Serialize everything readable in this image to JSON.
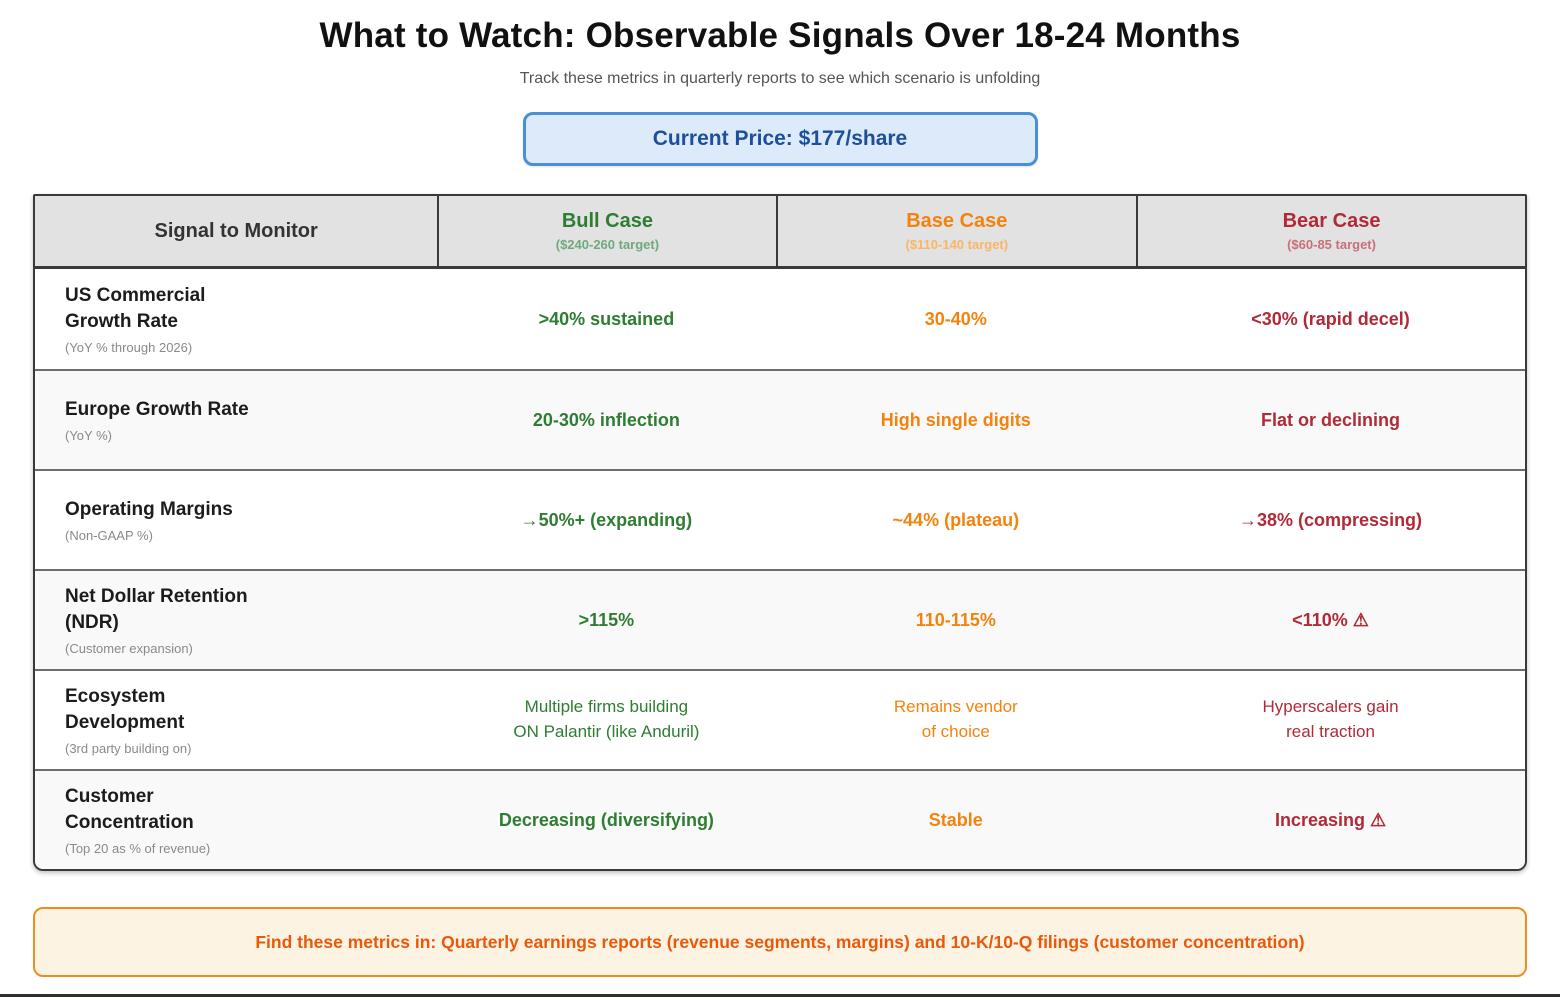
{
  "page": {
    "title": "What to Watch: Observable Signals Over 18-24 Months",
    "subtitle": "Track these metrics in quarterly reports to see which scenario is unfolding",
    "current_price": "Current Price: $177/share"
  },
  "colors": {
    "bull_green": "#2e7d32",
    "base_orange": "#f5820d",
    "bear_red": "#b02a37",
    "price_blue": "#1d4f9c",
    "price_border": "#4a90d9",
    "footer_orange": "#e8590c",
    "header_gray": "#e2e2e2"
  },
  "table": {
    "columns": [
      {
        "label": "Signal to Monitor",
        "sublabel": ""
      },
      {
        "label": "Bull Case",
        "sublabel": "($240-260 target)"
      },
      {
        "label": "Base Case",
        "sublabel": "($110-140 target)"
      },
      {
        "label": "Bear Case",
        "sublabel": "($60-85 target)"
      }
    ],
    "rows": [
      {
        "signal": "US Commercial Growth Rate",
        "note": "(YoY % through 2026)",
        "bull": ">40% sustained",
        "base": "30-40%",
        "bear": "<30% (rapid decel)"
      },
      {
        "signal": "Europe Growth Rate",
        "note": "(YoY %)",
        "bull": "20-30% inflection",
        "base": "High single digits",
        "bear": "Flat or declining"
      },
      {
        "signal": "Operating Margins",
        "note": "(Non-GAAP %)",
        "bull": "→50%+ (expanding)",
        "base": "~44% (plateau)",
        "bear": "→38% (compressing)"
      },
      {
        "signal": "Net Dollar Retention (NDR)",
        "note": "(Customer expansion)",
        "bull": ">115%",
        "base": "110-115%",
        "bear": "<110% ⚠"
      },
      {
        "signal": "Ecosystem Development",
        "note": "(3rd party building on)",
        "bull": "Multiple firms building\nON Palantir (like Anduril)",
        "base": "Remains vendor\nof choice",
        "bear": "Hyperscalers gain\nreal traction"
      },
      {
        "signal": "Customer Concentration",
        "note": "(Top 20 as % of revenue)",
        "bull": "Decreasing (diversifying)",
        "base": "Stable",
        "bear": "Increasing ⚠"
      }
    ]
  },
  "footer": {
    "text": "Find these metrics in: Quarterly earnings reports (revenue segments, margins) and 10-K/10-Q filings (customer concentration)"
  },
  "chart_data": {
    "type": "table",
    "title": "What to Watch: Observable Signals Over 18-24 Months",
    "subtitle": "Track these metrics in quarterly reports to see which scenario is unfolding",
    "current_price_per_share_usd": 177,
    "scenarios": [
      {
        "name": "Bull Case",
        "price_target": "$240-260"
      },
      {
        "name": "Base Case",
        "price_target": "$110-140"
      },
      {
        "name": "Bear Case",
        "price_target": "$60-85"
      }
    ],
    "signals": [
      {
        "metric": "US Commercial Growth Rate (YoY % through 2026)",
        "bull": ">40% sustained",
        "base": "30-40%",
        "bear": "<30% (rapid decel)"
      },
      {
        "metric": "Europe Growth Rate (YoY %)",
        "bull": "20-30% inflection",
        "base": "High single digits",
        "bear": "Flat or declining"
      },
      {
        "metric": "Operating Margins (Non-GAAP %)",
        "bull": "→50%+ (expanding)",
        "base": "~44% (plateau)",
        "bear": "→38% (compressing)"
      },
      {
        "metric": "Net Dollar Retention (NDR) (Customer expansion)",
        "bull": ">115%",
        "base": "110-115%",
        "bear": "<110% ⚠"
      },
      {
        "metric": "Ecosystem Development (3rd party building on)",
        "bull": "Multiple firms building ON Palantir (like Anduril)",
        "base": "Remains vendor of choice",
        "bear": "Hyperscalers gain real traction"
      },
      {
        "metric": "Customer Concentration (Top 20 as % of revenue)",
        "bull": "Decreasing (diversifying)",
        "base": "Stable",
        "bear": "Increasing ⚠"
      }
    ]
  }
}
